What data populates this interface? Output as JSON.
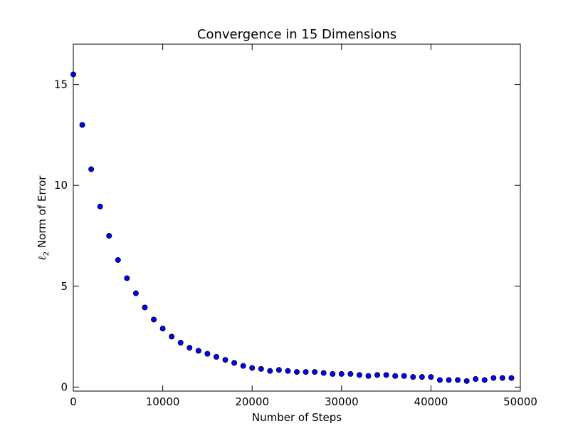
{
  "chart_data": {
    "type": "scatter",
    "title": "Convergence in 15 Dimensions",
    "xlabel": "Number of Steps",
    "ylabel": {
      "symbol": "ℓ",
      "subscript": "2",
      "text": " Norm of Error"
    },
    "xlim": [
      0,
      50000
    ],
    "ylim": [
      -0.2,
      17
    ],
    "xticks": [
      0,
      10000,
      20000,
      30000,
      40000,
      50000
    ],
    "xtick_labels": [
      "0",
      "10000",
      "20000",
      "30000",
      "40000",
      "50000"
    ],
    "yticks": [
      0,
      5,
      10,
      15
    ],
    "ytick_labels": [
      "0",
      "5",
      "10",
      "15"
    ],
    "grid": false,
    "legend": "none",
    "marker_color": "#0000ff",
    "marker_edge_color": "#000000",
    "series": [
      {
        "x": [
          0,
          1000,
          2000,
          3000,
          4000,
          5000,
          6000,
          7000,
          8000,
          9000,
          10000,
          11000,
          12000,
          13000,
          14000,
          15000,
          16000,
          17000,
          18000,
          19000,
          20000,
          21000,
          22000,
          23000,
          24000,
          25000,
          26000,
          27000,
          28000,
          29000,
          30000,
          31000,
          32000,
          33000,
          34000,
          35000,
          36000,
          37000,
          38000,
          39000,
          40000,
          41000,
          42000,
          43000,
          44000,
          45000,
          46000,
          47000,
          48000,
          49000
        ],
        "y": [
          15.5,
          13.0,
          10.8,
          8.95,
          7.5,
          6.3,
          5.4,
          4.65,
          3.95,
          3.35,
          2.9,
          2.5,
          2.2,
          1.95,
          1.8,
          1.65,
          1.5,
          1.35,
          1.2,
          1.05,
          0.95,
          0.9,
          0.8,
          0.85,
          0.8,
          0.75,
          0.75,
          0.75,
          0.7,
          0.65,
          0.65,
          0.65,
          0.6,
          0.55,
          0.6,
          0.6,
          0.55,
          0.55,
          0.5,
          0.5,
          0.5,
          0.35,
          0.35,
          0.35,
          0.3,
          0.4,
          0.35,
          0.45,
          0.45,
          0.45
        ]
      }
    ]
  }
}
